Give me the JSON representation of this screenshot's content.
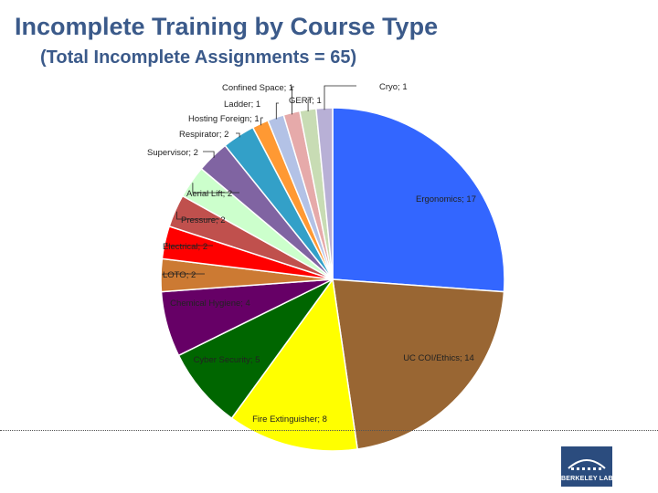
{
  "slide": {
    "title": "Incomplete Training by Course Type",
    "subtitle": "(Total Incomplete Assignments = 65)"
  },
  "logo": {
    "text": "BERKELEY LAB",
    "icon": "berkeley-lab-logo"
  },
  "chart_data": {
    "type": "pie",
    "title": "",
    "start_angle": "12 o'clock",
    "direction": "clockwise",
    "legend": "none",
    "label_format": "Category; Value",
    "slices": [
      {
        "name": "Ergonomics",
        "value": 17,
        "color": "#3366ff",
        "label": "Ergonomics; 17"
      },
      {
        "name": "UC COI/Ethics",
        "value": 14,
        "color": "#996633",
        "label": "UC COI/Ethics; 14"
      },
      {
        "name": "Fire Extinguisher",
        "value": 8,
        "color": "#ffff00",
        "label": "Fire Extinguisher; 8"
      },
      {
        "name": "Cyber Security",
        "value": 5,
        "color": "#006600",
        "label": "Cyber Security; 5"
      },
      {
        "name": "Chemical Hygiene",
        "value": 4,
        "color": "#660066",
        "label": "Chemical Hygiene; 4"
      },
      {
        "name": "LOTO",
        "value": 2,
        "color": "#cc7a33",
        "label": "LOTO; 2"
      },
      {
        "name": "Electrical",
        "value": 2,
        "color": "#ff0000",
        "label": "Electrical; 2"
      },
      {
        "name": "Pressure",
        "value": 2,
        "color": "#c0504d",
        "label": "Pressure; 2"
      },
      {
        "name": "Aerial Lift",
        "value": 2,
        "color": "#ccffcc",
        "label": "Aerial Lift; 2"
      },
      {
        "name": "Supervisor",
        "value": 2,
        "color": "#8064a2",
        "label": "Supervisor; 2"
      },
      {
        "name": "Respirator",
        "value": 2,
        "color": "#33a0c8",
        "label": "Respirator; 2"
      },
      {
        "name": "Hosting Foreign",
        "value": 1,
        "color": "#ff9933",
        "label": "Hosting Foreign; 1"
      },
      {
        "name": "Ladder",
        "value": 1,
        "color": "#b3c2e6",
        "label": "Ladder; 1"
      },
      {
        "name": "Confined Space",
        "value": 1,
        "color": "#e6aaaa",
        "label": "Confined Space; 1"
      },
      {
        "name": "GERT",
        "value": 1,
        "color": "#c8dcb4",
        "label": "GERT; 1"
      },
      {
        "name": "Cryo",
        "value": 1,
        "color": "#b8b0d6",
        "label": "Cryo; 1"
      }
    ]
  }
}
